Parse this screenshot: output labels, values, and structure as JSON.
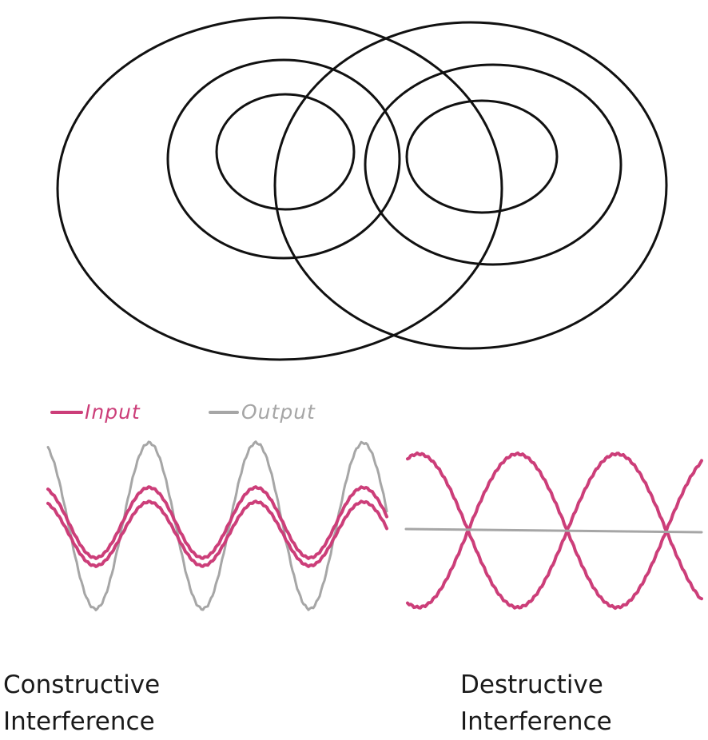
{
  "legend": {
    "input_label": "Input",
    "output_label": "Output"
  },
  "captions": {
    "constructive_line1": "Constructive",
    "constructive_line2": "Interference",
    "destructive_line1": "Destructive",
    "destructive_line2": "Interference"
  },
  "colors": {
    "input": "#cc3e79",
    "output": "#a6a6a6",
    "ripples": "#111111"
  }
}
